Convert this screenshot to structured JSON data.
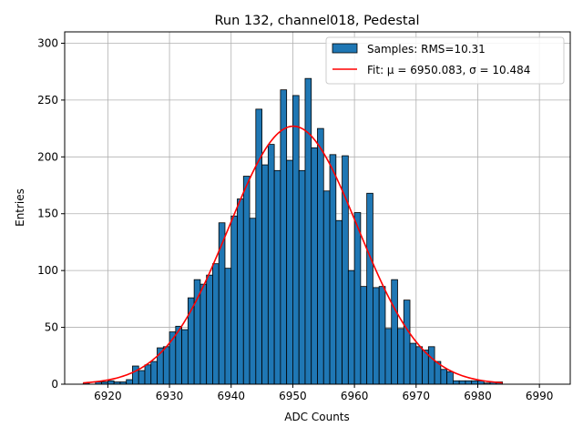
{
  "chart_data": {
    "type": "bar",
    "title": "Run 132, channel018, Pedestal",
    "xlabel": "ADC Counts",
    "ylabel": "Entries",
    "xlim": [
      6913,
      6995
    ],
    "ylim": [
      0,
      310
    ],
    "xticks": [
      6920,
      6930,
      6940,
      6950,
      6960,
      6970,
      6980,
      6990
    ],
    "yticks": [
      0,
      50,
      100,
      150,
      200,
      250,
      300
    ],
    "grid": true,
    "legend_position": "top-right",
    "colors": {
      "bar": "#1f77b4",
      "fit": "#ff0000",
      "edge": "#000000",
      "grid": "#b0b0b0"
    },
    "legend": [
      {
        "label": "Samples: RMS=10.31",
        "kind": "patch"
      },
      {
        "label": "Fit: μ = 6950.083, σ = 10.484",
        "kind": "line"
      }
    ],
    "bins": {
      "start": 6916,
      "width": 1,
      "counts": [
        1,
        0,
        2,
        2,
        3,
        2,
        2,
        4,
        16,
        12,
        17,
        20,
        32,
        33,
        46,
        51,
        48,
        76,
        92,
        88,
        96,
        106,
        142,
        102,
        148,
        163,
        183,
        146,
        242,
        193,
        211,
        188,
        259,
        197,
        254,
        188,
        269,
        208,
        225,
        170,
        202,
        144,
        201,
        100,
        151,
        86,
        168,
        85,
        86,
        49,
        92,
        49,
        74,
        36,
        33,
        30,
        33,
        20,
        13,
        11,
        3,
        3,
        3,
        3,
        3,
        1,
        2,
        2
      ]
    },
    "fit": {
      "mu": 6950.083,
      "sigma": 10.484,
      "amplitude": 227,
      "range": [
        6916,
        6984
      ]
    }
  }
}
